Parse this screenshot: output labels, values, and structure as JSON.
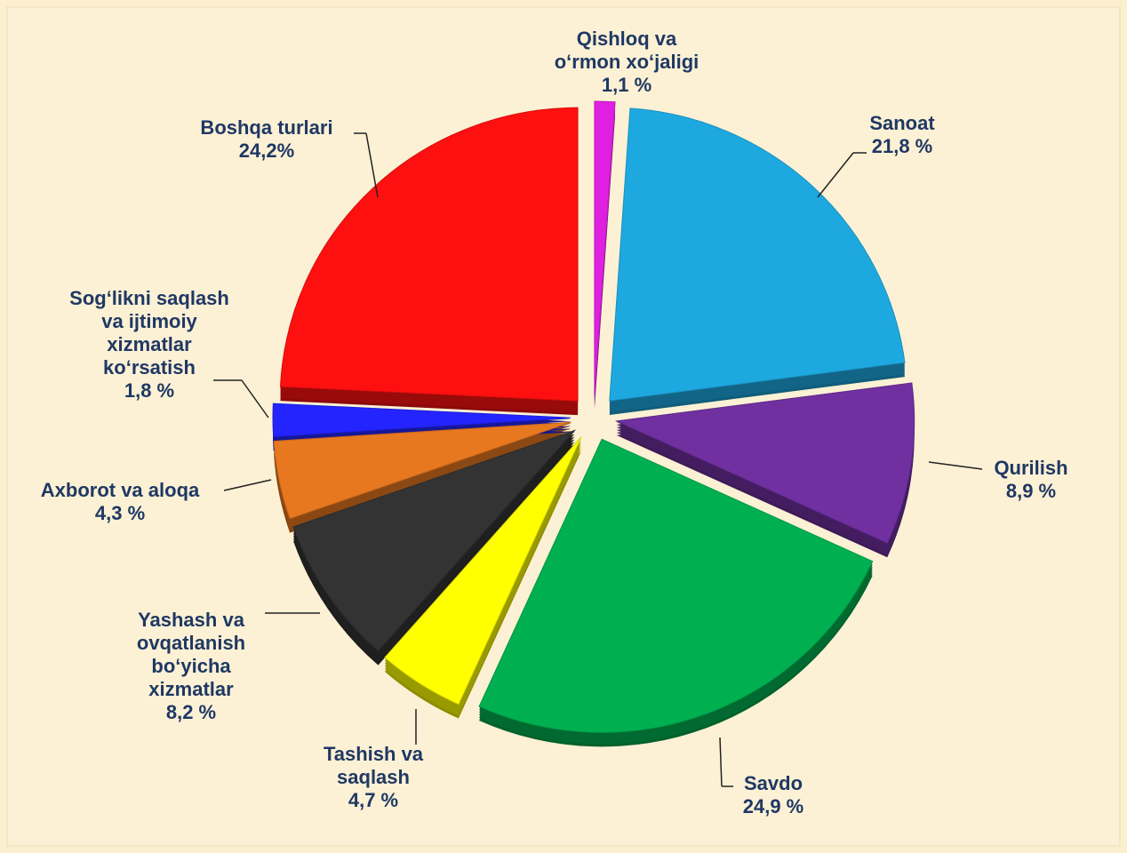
{
  "chart_data": {
    "type": "pie",
    "categories": [
      "Qishloq va\no‘rmon xo‘jaligi",
      "Sanoat",
      "Qurilish",
      "Savdo",
      "Tashish va\nsaqlash",
      "Yashash va\novqatlanish\nbo‘yicha\nxizmatlar",
      "Axborot va aloqa",
      "Sog‘likni saqlash\nva ijtimoiy\nxizmatlar\nko‘rsatish",
      "Boshqa turlari"
    ],
    "values": [
      1.1,
      21.8,
      8.9,
      24.9,
      4.7,
      8.2,
      4.3,
      1.8,
      24.2
    ],
    "value_labels": [
      "1,1 %",
      "21,8 %",
      "8,9 %",
      "24,9 %",
      "4,7 %",
      "8,2 %",
      "4,3 %",
      "1,8 %",
      "24,2%"
    ],
    "colors": [
      "#e020e0",
      "#1ea8e0",
      "#7030a0",
      "#00b050",
      "#ffff00",
      "#333333",
      "#e87820",
      "#2424ff",
      "#ff1010"
    ]
  }
}
